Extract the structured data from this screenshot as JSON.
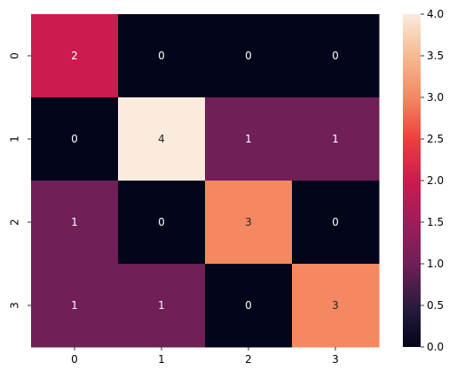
{
  "chart_data": {
    "type": "heatmap",
    "title": "",
    "xlabel": "",
    "ylabel": "",
    "x_categories": [
      "0",
      "1",
      "2",
      "3"
    ],
    "y_categories": [
      "0",
      "1",
      "2",
      "3"
    ],
    "values": [
      [
        2,
        0,
        0,
        0
      ],
      [
        0,
        4,
        1,
        1
      ],
      [
        1,
        0,
        3,
        0
      ],
      [
        1,
        1,
        0,
        3
      ]
    ],
    "annotations": [
      [
        "2",
        "0",
        "0",
        "0"
      ],
      [
        "0",
        "4",
        "1",
        "1"
      ],
      [
        "1",
        "0",
        "3",
        "0"
      ],
      [
        "1",
        "1",
        "0",
        "3"
      ]
    ],
    "colorbar": {
      "range": [
        0,
        4
      ],
      "ticks": [
        "0.0",
        "0.5",
        "1.0",
        "1.5",
        "2.0",
        "2.5",
        "3.0",
        "3.5",
        "4.0"
      ],
      "colormap": "rocket"
    },
    "colors": {
      "0": "#03051a",
      "1": "#701f57",
      "2": "#cb1b4f",
      "3": "#f58860",
      "4": "#faebdd"
    }
  }
}
